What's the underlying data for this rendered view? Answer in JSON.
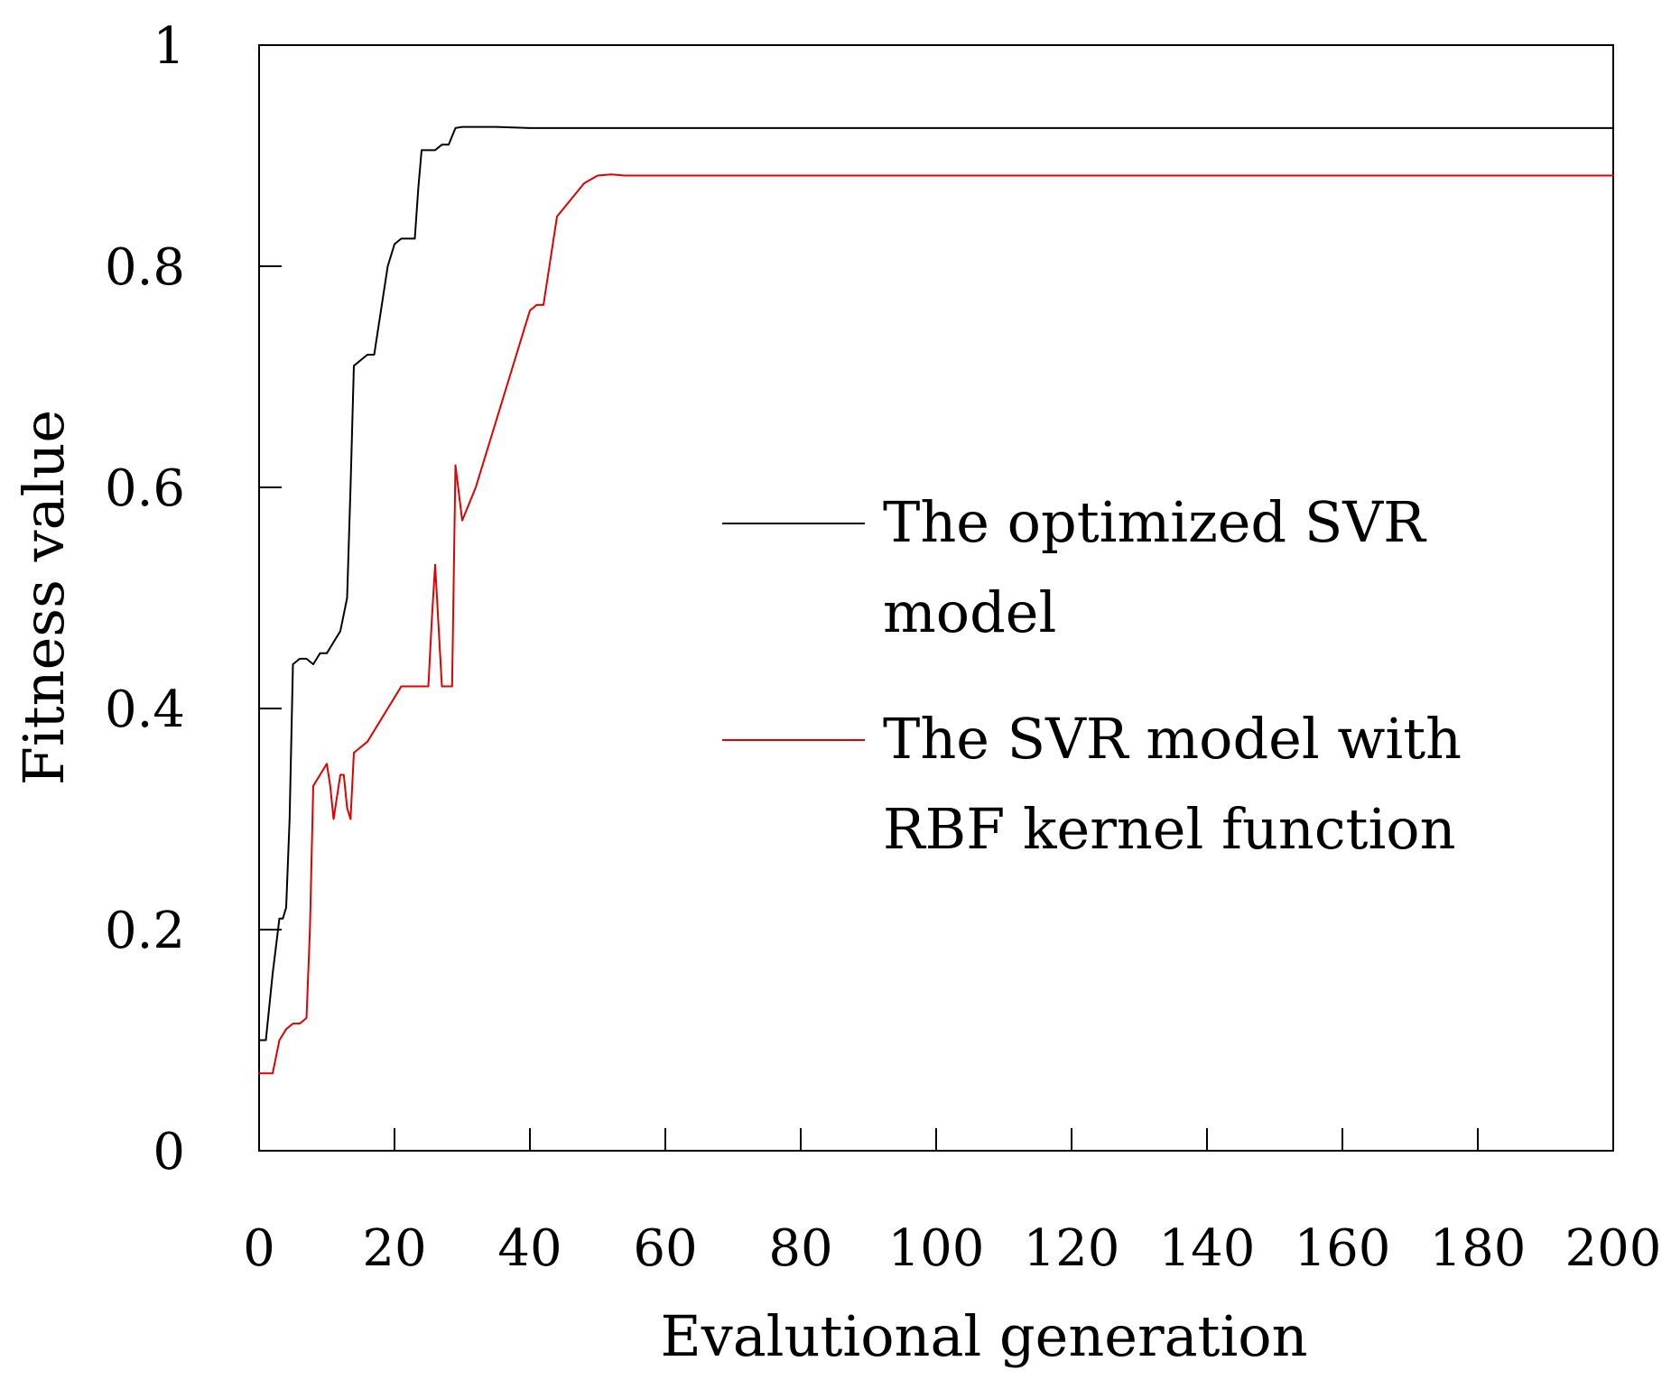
{
  "chart_data": {
    "type": "line",
    "xlabel": "Evalutional generation",
    "ylabel": "Fitness value",
    "xlim": [
      0,
      200
    ],
    "ylim": [
      0,
      1
    ],
    "xticks": [
      0,
      20,
      40,
      60,
      80,
      100,
      120,
      140,
      160,
      180,
      200
    ],
    "yticks": [
      0,
      0.2,
      0.4,
      0.6,
      0.8,
      1
    ],
    "xtick_labels": [
      "0",
      "20",
      "40",
      "60",
      "80",
      "100",
      "120",
      "140",
      "160",
      "180",
      "200"
    ],
    "ytick_labels": [
      "0",
      "0.2",
      "0.4",
      "0.6",
      "0.8",
      "1"
    ],
    "grid": false,
    "legend_position": "center-right",
    "series": [
      {
        "name": "The optimized SVR model",
        "legend_lines": [
          "The optimized SVR",
          "model"
        ],
        "color": "#000000",
        "x": [
          0,
          1,
          2,
          3,
          3.5,
          4,
          4.5,
          5,
          6,
          7,
          8,
          9,
          10,
          11,
          12,
          13,
          13.5,
          14,
          15,
          16,
          17,
          18,
          19,
          20,
          21,
          22,
          23,
          23.5,
          24,
          25,
          26,
          27,
          28,
          29,
          30,
          35,
          40,
          60,
          100,
          150,
          200
        ],
        "y": [
          0.1,
          0.1,
          0.16,
          0.21,
          0.21,
          0.22,
          0.3,
          0.44,
          0.445,
          0.445,
          0.44,
          0.45,
          0.45,
          0.46,
          0.47,
          0.5,
          0.6,
          0.71,
          0.715,
          0.72,
          0.72,
          0.76,
          0.8,
          0.82,
          0.825,
          0.825,
          0.825,
          0.87,
          0.905,
          0.905,
          0.905,
          0.91,
          0.91,
          0.925,
          0.926,
          0.926,
          0.925,
          0.925,
          0.925,
          0.925,
          0.925
        ]
      },
      {
        "name": "The SVR model with RBF kernel function",
        "legend_lines": [
          "The SVR model with",
          "RBF kernel function"
        ],
        "color": "#e00000",
        "x": [
          0,
          1,
          2,
          3,
          4,
          5,
          6,
          7,
          7.5,
          8,
          9,
          10,
          10.5,
          11,
          12,
          12.5,
          13,
          13.5,
          14,
          15,
          16,
          17,
          18,
          19,
          20,
          21,
          22,
          23,
          24,
          25,
          25.5,
          26,
          27,
          28,
          28.5,
          29,
          30,
          32,
          34,
          36,
          38,
          40,
          41,
          42,
          44,
          46,
          48,
          50,
          52,
          54,
          60,
          100,
          150,
          200
        ],
        "y": [
          0.07,
          0.07,
          0.07,
          0.1,
          0.11,
          0.115,
          0.115,
          0.12,
          0.2,
          0.33,
          0.34,
          0.35,
          0.33,
          0.3,
          0.34,
          0.34,
          0.31,
          0.3,
          0.36,
          0.365,
          0.37,
          0.38,
          0.39,
          0.4,
          0.41,
          0.42,
          0.42,
          0.42,
          0.42,
          0.42,
          0.48,
          0.53,
          0.42,
          0.42,
          0.42,
          0.62,
          0.57,
          0.6,
          0.64,
          0.68,
          0.72,
          0.76,
          0.765,
          0.765,
          0.845,
          0.86,
          0.875,
          0.882,
          0.883,
          0.882,
          0.882,
          0.882,
          0.882,
          0.882
        ]
      }
    ]
  }
}
